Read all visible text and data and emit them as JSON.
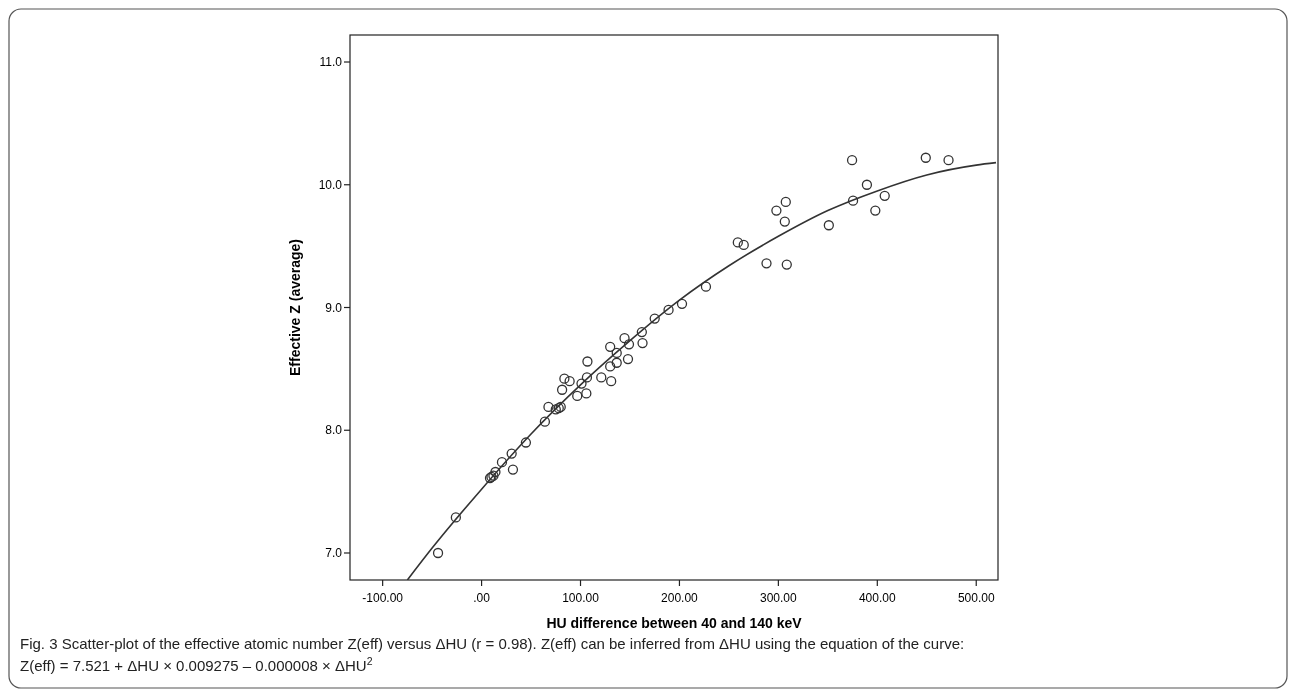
{
  "chart_data": {
    "type": "scatter",
    "xlabel": "HU difference between 40 and 140 keV",
    "ylabel": "Effective Z (average)",
    "annotations": [
      "Fig. 3 Scatter-plot of the effective atomic number Z(eff) versus ΔHU (r = 0.98). Z(eff) can be inferred from ΔHU using the equation of the curve: Z(eff) = 7.521 + ΔHU × 0.009275 – 0.000008 × ΔHU$^{2}$"
    ],
    "xlim": [
      -133,
      522
    ],
    "ylim": [
      6.78,
      11.22
    ],
    "xticks": [
      {
        "value": -100,
        "label": "-100.00"
      },
      {
        "value": 0,
        "label": ".00"
      },
      {
        "value": 100,
        "label": "100.00"
      },
      {
        "value": 200,
        "label": "200.00"
      },
      {
        "value": 300,
        "label": "300.00"
      },
      {
        "value": 400,
        "label": "400.00"
      },
      {
        "value": 500,
        "label": "500.00"
      }
    ],
    "yticks": [
      {
        "value": 7,
        "label": "7.0"
      },
      {
        "value": 8,
        "label": "8.0"
      },
      {
        "value": 9,
        "label": "9.0"
      },
      {
        "value": 10,
        "label": "10.0"
      },
      {
        "value": 11,
        "label": "11.0"
      }
    ],
    "grid": false,
    "marker": "circle",
    "series": [
      {
        "color": "#333333",
        "x": [
          -44,
          -26,
          8.5,
          10,
          12,
          14,
          20.6,
          30.4,
          31.7,
          44.8,
          64,
          67.6,
          75,
          78,
          80,
          81.4,
          83.7,
          89,
          96.7,
          101,
          105.9,
          106.5,
          107,
          121,
          131,
          130,
          130,
          136.6,
          136.6,
          144.5,
          148,
          149,
          162,
          162.7,
          175,
          189,
          202.6,
          226.8,
          259,
          265,
          288,
          308.5,
          298,
          307.5,
          306.5,
          351,
          374.5,
          375.5,
          389.5,
          398,
          407.5,
          449,
          472
        ],
        "values": [
          7.0,
          7.29,
          7.61,
          7.62,
          7.63,
          7.66,
          7.74,
          7.81,
          7.68,
          7.9,
          8.07,
          8.19,
          8.17,
          8.18,
          8.19,
          8.33,
          8.42,
          8.4,
          8.28,
          8.38,
          8.3,
          8.43,
          8.56,
          8.43,
          8.4,
          8.52,
          8.68,
          8.55,
          8.63,
          8.75,
          8.58,
          8.7,
          8.8,
          8.71,
          8.91,
          8.98,
          9.03,
          9.17,
          9.53,
          9.51,
          9.36,
          9.35,
          9.79,
          9.86,
          9.7,
          9.67,
          10.2,
          9.87,
          10.0,
          9.79,
          9.91,
          10.22,
          10.2
        ]
      },
      {
        "type": "line",
        "color": "#333333",
        "marker": "none",
        "x": [
          -75,
          -50,
          0,
          50,
          100,
          150,
          200,
          250,
          300,
          350,
          400,
          450,
          500,
          520
        ],
        "values": [
          6.78,
          7.04,
          7.52,
          7.97,
          8.37,
          8.73,
          9.06,
          9.34,
          9.58,
          9.79,
          9.95,
          10.08,
          10.16,
          10.18
        ]
      }
    ]
  }
}
